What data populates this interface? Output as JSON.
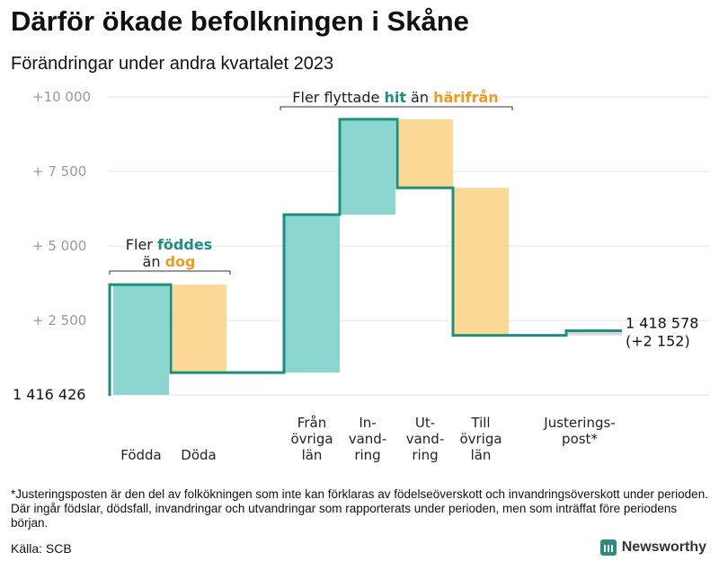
{
  "title": "Därför ökade befolkningen i Skåne",
  "subtitle": "Förändringar under andra kvartalet 2023",
  "colors": {
    "increase": "#8ad5cd",
    "decrease": "#fbd894",
    "line": "#1e8f7f",
    "teal_text": "#1e8f7f",
    "orange_text": "#ef9b1f",
    "adjustment": "#d8d8d8"
  },
  "chart_data": {
    "type": "waterfall",
    "start_value": 1416426,
    "start_label": "1  416   426",
    "end_value": 1418578,
    "end_label": "1 418 578",
    "end_change_label": "(+2 152)",
    "ylim": [
      0,
      10600
    ],
    "yticks": [
      {
        "value": 2500,
        "label": "+  2  500"
      },
      {
        "value": 5000,
        "label": "+  5  000"
      },
      {
        "value": 7500,
        "label": "+  7  500"
      },
      {
        "value": 10000,
        "label": "+10   000"
      }
    ],
    "steps": [
      {
        "label": [
          "Födda"
        ],
        "value": 3700,
        "kind": "increase"
      },
      {
        "label": [
          "Döda"
        ],
        "value": -2950,
        "kind": "decrease"
      },
      {
        "label": [
          "Från",
          "övriga",
          "län"
        ],
        "value": 5300,
        "kind": "increase"
      },
      {
        "label": [
          "In-",
          "vand-",
          "ring"
        ],
        "value": 3200,
        "kind": "increase"
      },
      {
        "label": [
          "Ut-",
          "vand-",
          "ring"
        ],
        "value": -2300,
        "kind": "decrease"
      },
      {
        "label": [
          "Till",
          "övriga",
          "län"
        ],
        "value": -4950,
        "kind": "decrease"
      },
      {
        "label": [
          "Justerings-",
          "post*"
        ],
        "value": 152,
        "kind": "adjustment"
      }
    ],
    "annotations": [
      {
        "parts": [
          {
            "text": "Fler ",
            "style": "normal"
          },
          {
            "text": "föddes",
            "style": "teal"
          }
        ]
      },
      {
        "parts": [
          {
            "text": "än ",
            "style": "normal"
          },
          {
            "text": "dog",
            "style": "orange"
          }
        ]
      },
      {
        "parts": [
          {
            "text": "Fler flyttade ",
            "style": "normal"
          },
          {
            "text": "hit",
            "style": "teal"
          },
          {
            "text": " än ",
            "style": "normal"
          },
          {
            "text": "härifrån",
            "style": "orange"
          }
        ]
      }
    ]
  },
  "footnote": "*Justeringsposten är den del av folkökningen som inte kan förklaras av födelseöverskott och invandringsöverskott under perioden. Där ingår födslar, dödsfall, invandringar och utvandringar som rapporterats under perioden, men som inträffat före periodens början.",
  "source": "Källa: SCB",
  "brand": "Newsworthy"
}
